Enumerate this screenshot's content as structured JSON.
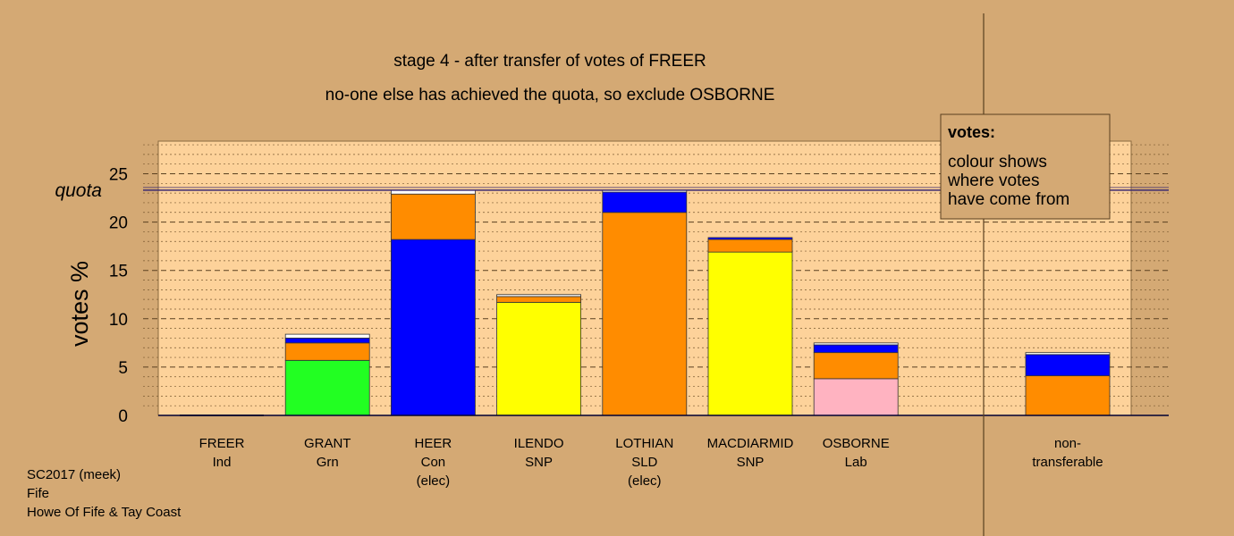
{
  "chart_data": {
    "type": "bar",
    "stacked": true,
    "title_line1": "stage 4 - after transfer of votes of FREER",
    "title_line2": "no-one else has achieved the quota, so exclude OSBORNE",
    "ylabel": "votes %",
    "ylim": [
      0,
      28.5
    ],
    "yticks": [
      0,
      5,
      10,
      15,
      20,
      25
    ],
    "quota": 23.3,
    "quota_label": "quota",
    "grid": "dashed horizontal",
    "colors": {
      "background": "#d4a974",
      "plot_area": "#fdd29a",
      "blue": "#0000ff",
      "orange": "#ff8c00",
      "green": "#22ff22",
      "yellow": "#ffff00",
      "pink": "#ffb3c1",
      "white": "#ffffff",
      "quota_line": "#3a2a70"
    },
    "candidates": [
      {
        "name": "FREER",
        "party": "Ind",
        "note": "",
        "segments": []
      },
      {
        "name": "GRANT",
        "party": "Grn",
        "note": "",
        "segments": [
          {
            "color": "green",
            "value": 5.7
          },
          {
            "color": "orange",
            "value": 1.8
          },
          {
            "color": "blue",
            "value": 0.5
          },
          {
            "color": "white",
            "value": 0.4
          }
        ]
      },
      {
        "name": "HEER",
        "party": "Con",
        "note": "(elec)",
        "segments": [
          {
            "color": "blue",
            "value": 18.2
          },
          {
            "color": "orange",
            "value": 4.7
          },
          {
            "color": "white",
            "value": 0.4
          }
        ]
      },
      {
        "name": "ILENDO",
        "party": "SNP",
        "note": "",
        "segments": [
          {
            "color": "yellow",
            "value": 11.7
          },
          {
            "color": "orange",
            "value": 0.6
          },
          {
            "color": "white",
            "value": 0.2
          }
        ]
      },
      {
        "name": "LOTHIAN",
        "party": "SLD",
        "note": "(elec)",
        "segments": [
          {
            "color": "orange",
            "value": 21.0
          },
          {
            "color": "blue",
            "value": 2.1
          },
          {
            "color": "white",
            "value": 0.2
          }
        ]
      },
      {
        "name": "MACDIARMID",
        "party": "SNP",
        "note": "",
        "segments": [
          {
            "color": "yellow",
            "value": 16.9
          },
          {
            "color": "orange",
            "value": 1.3
          },
          {
            "color": "blue",
            "value": 0.2
          }
        ]
      },
      {
        "name": "OSBORNE",
        "party": "Lab",
        "note": "",
        "segments": [
          {
            "color": "pink",
            "value": 3.8
          },
          {
            "color": "orange",
            "value": 2.7
          },
          {
            "color": "blue",
            "value": 0.8
          },
          {
            "color": "white",
            "value": 0.2
          }
        ]
      }
    ],
    "nontransferable": {
      "label1": "non-",
      "label2": "transferable",
      "segments": [
        {
          "color": "orange",
          "value": 4.1
        },
        {
          "color": "blue",
          "value": 2.2
        },
        {
          "color": "white",
          "value": 0.2
        }
      ]
    },
    "legend": {
      "title": "votes:",
      "lines": [
        "colour shows",
        "where votes",
        "have come from"
      ]
    }
  },
  "footer": {
    "line1": "SC2017 (meek)",
    "line2": "Fife",
    "line3": "Howe Of Fife & Tay Coast"
  }
}
